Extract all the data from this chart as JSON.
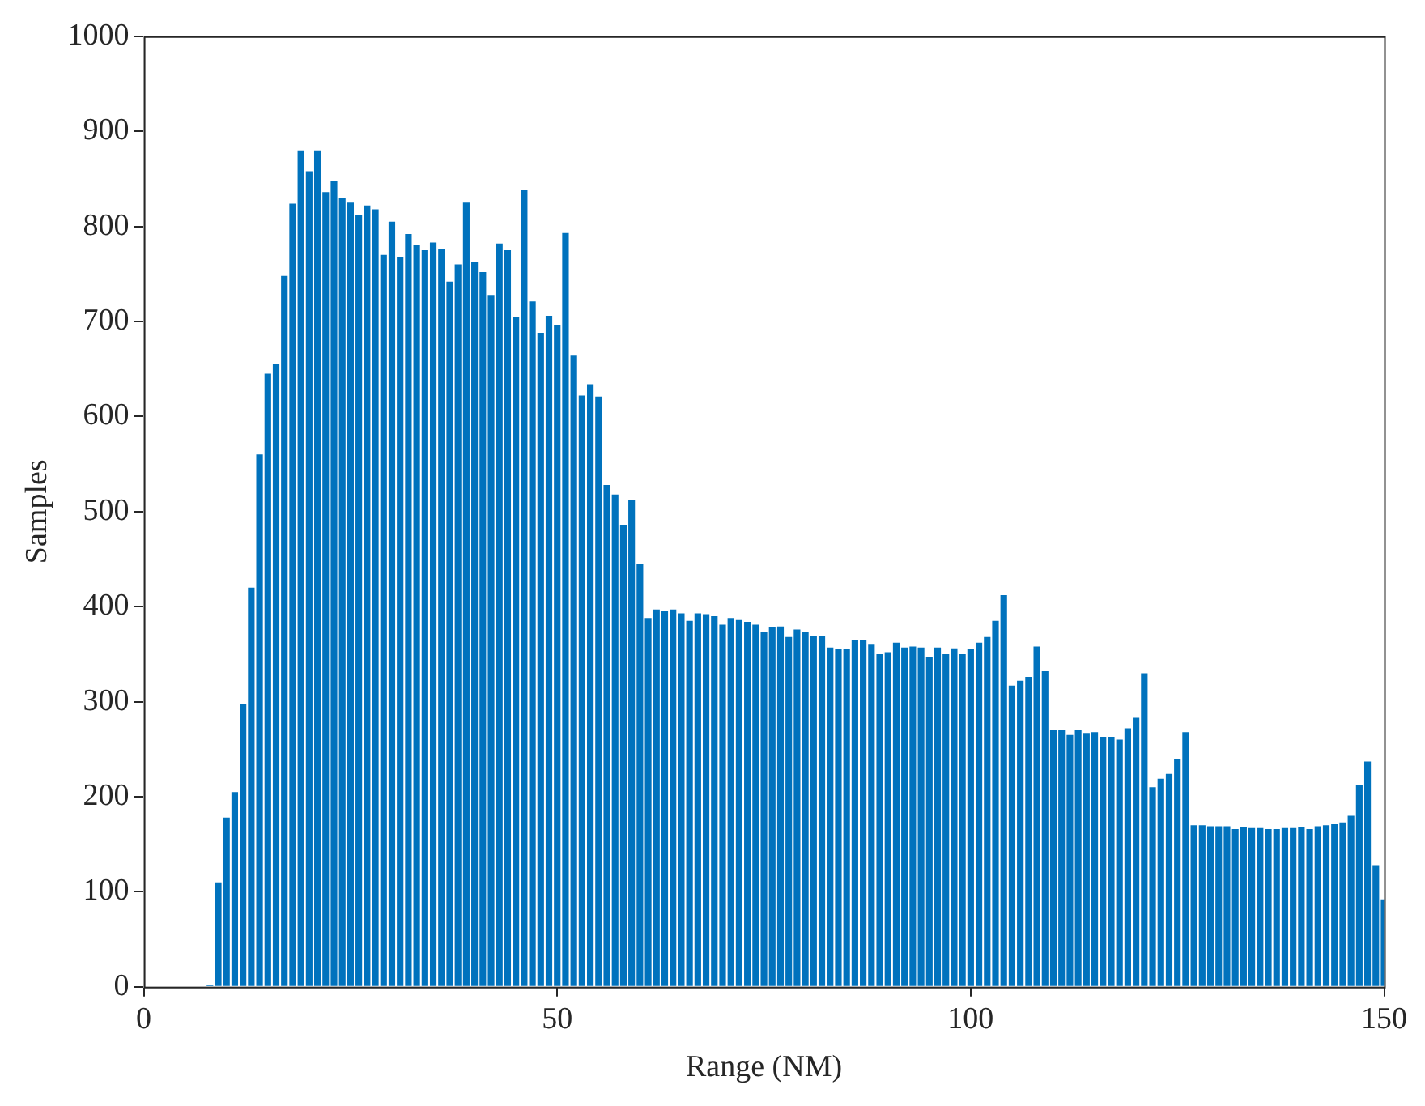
{
  "chart_data": {
    "type": "bar",
    "xlabel": "Range (NM)",
    "ylabel": "Samples",
    "color": "#0072bd",
    "x": [
      8,
      9,
      10,
      11,
      12,
      13,
      14,
      15,
      16,
      17,
      18,
      19,
      20,
      21,
      22,
      23,
      24,
      25,
      26,
      27,
      28,
      29,
      30,
      31,
      32,
      33,
      34,
      35,
      36,
      37,
      38,
      39,
      40,
      41,
      42,
      43,
      44,
      45,
      46,
      47,
      48,
      49,
      50,
      51,
      52,
      53,
      54,
      55,
      56,
      57,
      58,
      59,
      60,
      61,
      62,
      63,
      64,
      65,
      66,
      67,
      68,
      69,
      70,
      71,
      72,
      73,
      74,
      75,
      76,
      77,
      78,
      79,
      80,
      81,
      82,
      83,
      84,
      85,
      86,
      87,
      88,
      89,
      90,
      91,
      92,
      93,
      94,
      95,
      96,
      97,
      98,
      99,
      100,
      101,
      102,
      103,
      104,
      105,
      106,
      107,
      108,
      109,
      110,
      111,
      112,
      113,
      114,
      115,
      116,
      117,
      118,
      119,
      120,
      121,
      122,
      123,
      124,
      125,
      126,
      127,
      128,
      129,
      130,
      131,
      132,
      133,
      134,
      135,
      136,
      137,
      138,
      139,
      140,
      141,
      142,
      143,
      144,
      145,
      146,
      147,
      148,
      149,
      150
    ],
    "values": [
      2,
      110,
      178,
      205,
      298,
      420,
      560,
      645,
      655,
      748,
      824,
      880,
      858,
      880,
      836,
      848,
      830,
      825,
      812,
      822,
      818,
      770,
      805,
      768,
      792,
      780,
      775,
      783,
      776,
      742,
      760,
      825,
      763,
      752,
      728,
      782,
      775,
      705,
      838,
      721,
      688,
      706,
      696,
      793,
      664,
      622,
      634,
      621,
      528,
      518,
      486,
      512,
      445,
      388,
      397,
      395,
      397,
      393,
      385,
      393,
      392,
      390,
      381,
      388,
      386,
      384,
      381,
      373,
      378,
      379,
      368,
      376,
      373,
      369,
      369,
      357,
      355,
      355,
      365,
      365,
      360,
      350,
      352,
      362,
      357,
      358,
      357,
      347,
      357,
      350,
      356,
      350,
      355,
      362,
      368,
      385,
      412,
      317,
      322,
      326,
      358,
      332,
      270,
      270,
      265,
      270,
      267,
      268,
      263,
      263,
      260,
      272,
      283,
      330,
      210,
      219,
      224,
      240,
      268,
      170,
      170,
      169,
      169,
      169,
      166,
      168,
      167,
      167,
      166,
      166,
      167,
      167,
      168,
      166,
      169,
      170,
      171,
      173,
      180,
      212,
      237,
      128,
      92
    ],
    "xlim": [
      0,
      150
    ],
    "xticks": [
      0,
      50,
      100,
      150
    ],
    "ylim": [
      0,
      1000
    ],
    "yticks": [
      0,
      100,
      200,
      300,
      400,
      500,
      600,
      700,
      800,
      900,
      1000
    ]
  }
}
